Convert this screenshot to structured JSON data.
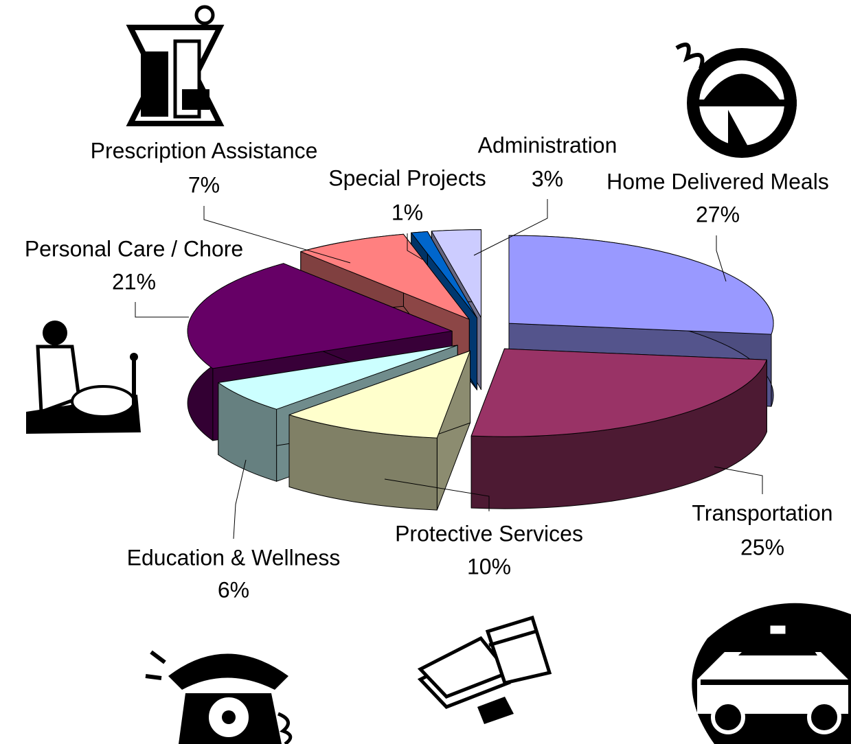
{
  "chart_data": {
    "type": "pie",
    "categories": [
      "Home Delivered Meals",
      "Transportation",
      "Protective Services",
      "Education & Wellness",
      "Personal Care / Chore",
      "Prescription Assistance",
      "Special Projects",
      "Administration"
    ],
    "values": [
      27,
      25,
      10,
      6,
      21,
      7,
      1,
      3
    ],
    "value_labels": [
      "27%",
      "25%",
      "10%",
      "6%",
      "21%",
      "7%",
      "1%",
      "3%"
    ],
    "colors": [
      "#9999ff",
      "#993366",
      "#ffffcc",
      "#ccffff",
      "#660066",
      "#ff8080",
      "#0066cc",
      "#ccccff"
    ]
  }
}
